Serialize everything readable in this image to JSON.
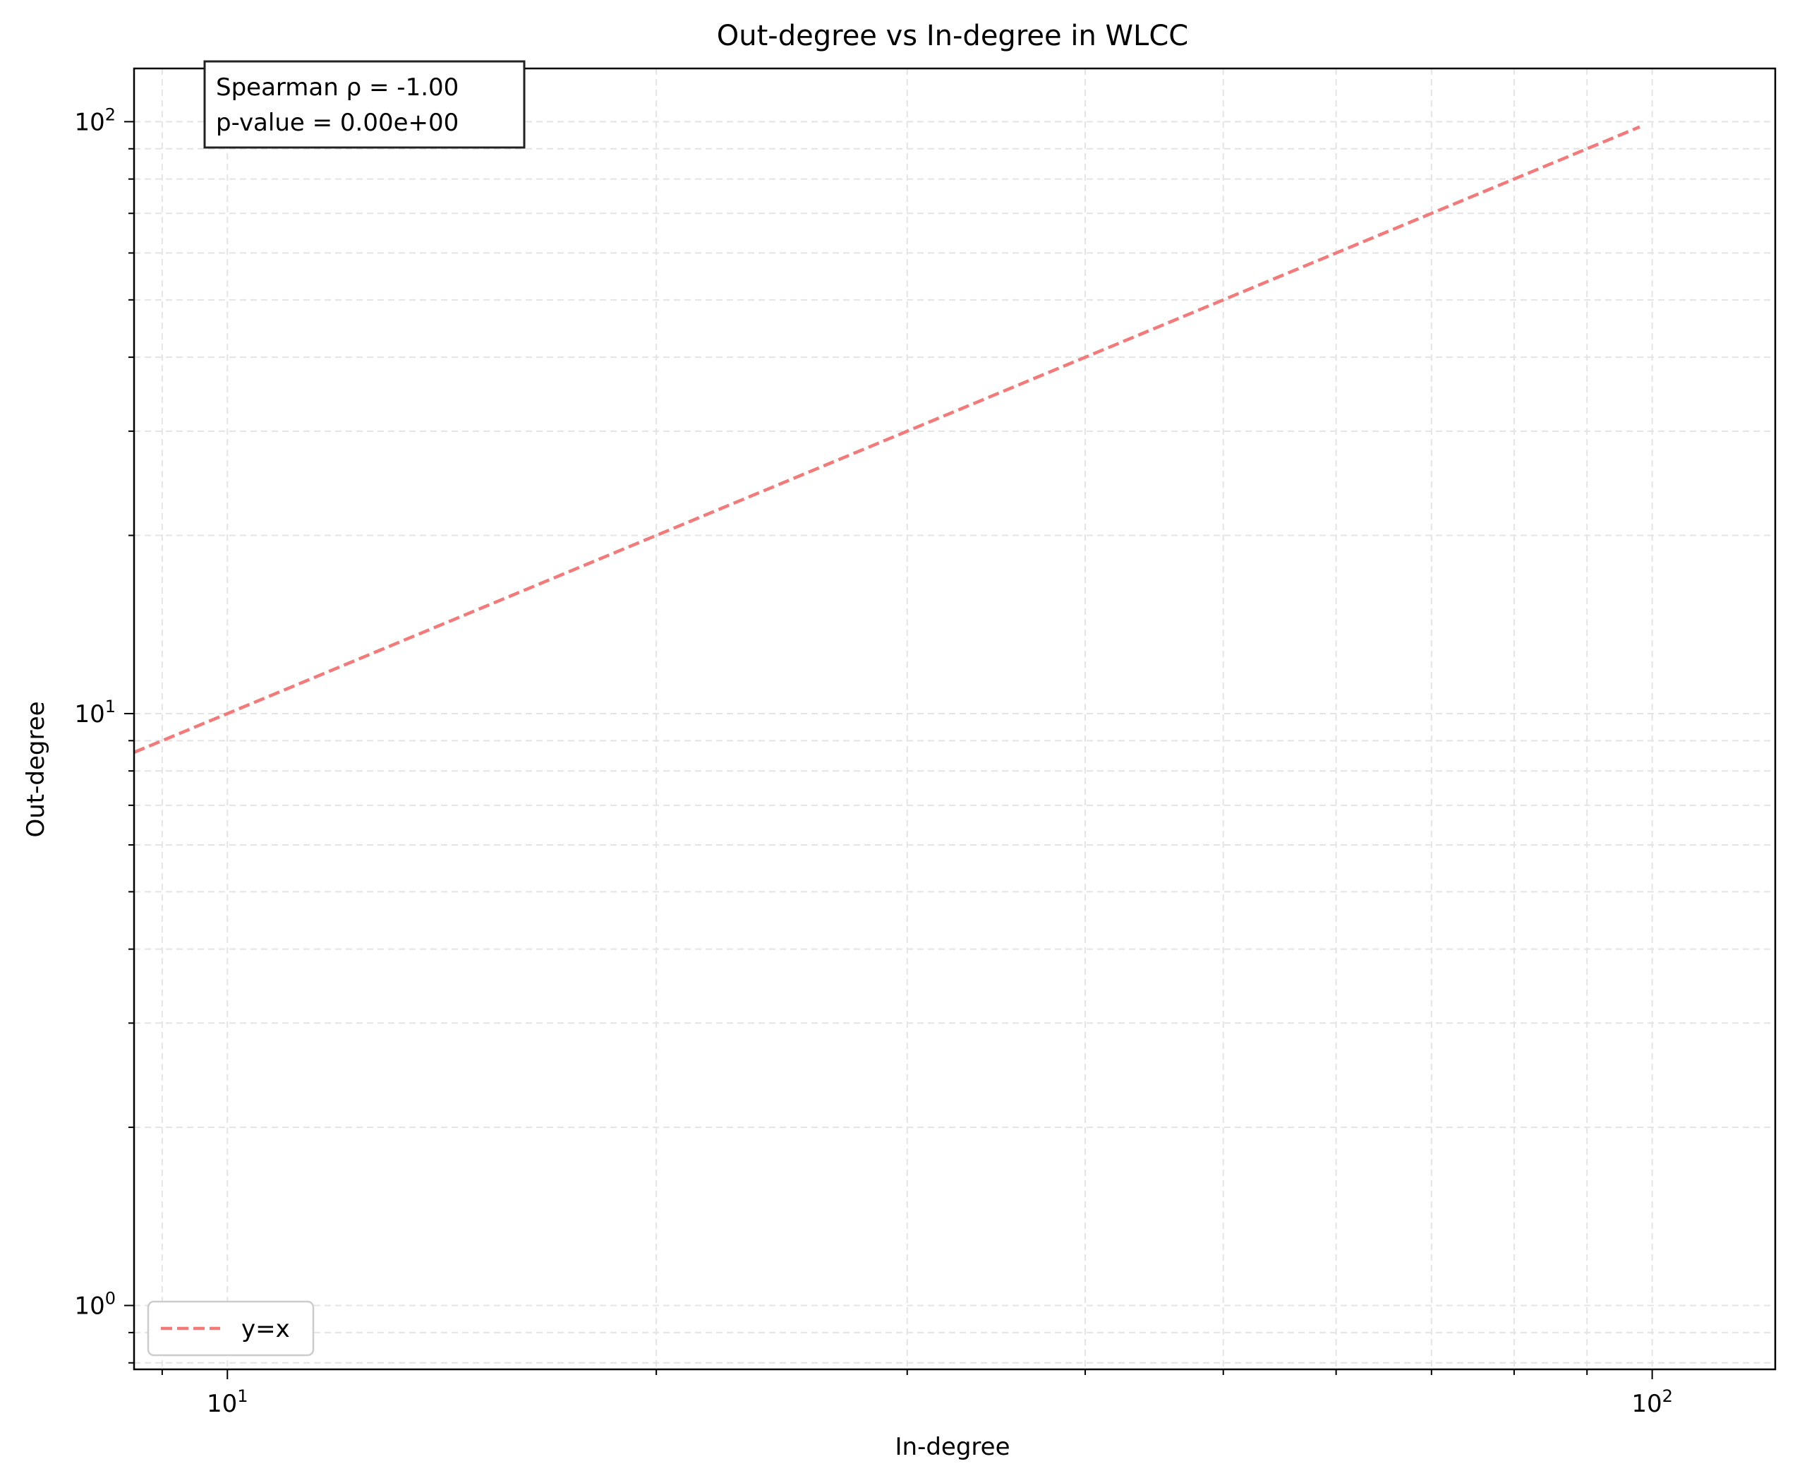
{
  "chart_data": {
    "type": "line",
    "title": "Out-degree vs In-degree in WLCC",
    "xlabel": "In-degree",
    "ylabel": "Out-degree",
    "xscale": "log",
    "yscale": "log",
    "xlim": [
      8.6,
      122
    ],
    "ylim": [
      0.78,
      123
    ],
    "grid": true,
    "x_major_ticks": [
      {
        "value": 10,
        "base": "10",
        "exp": "1"
      },
      {
        "value": 100,
        "base": "10",
        "exp": "2"
      }
    ],
    "y_major_ticks": [
      {
        "value": 1,
        "base": "10",
        "exp": "0"
      },
      {
        "value": 10,
        "base": "10",
        "exp": "1"
      },
      {
        "value": 100,
        "base": "10",
        "exp": "2"
      }
    ],
    "series": [
      {
        "name": "y=x",
        "style": "dashed",
        "color": "#f47a7a",
        "x": [
          8.6,
          98
        ],
        "y": [
          8.6,
          98
        ]
      }
    ],
    "annotation": {
      "lines": [
        "Spearman ρ = -1.00",
        "p-value = 0.00e+00"
      ],
      "placement": "top-left"
    },
    "legend": {
      "placement": "lower-left"
    }
  }
}
